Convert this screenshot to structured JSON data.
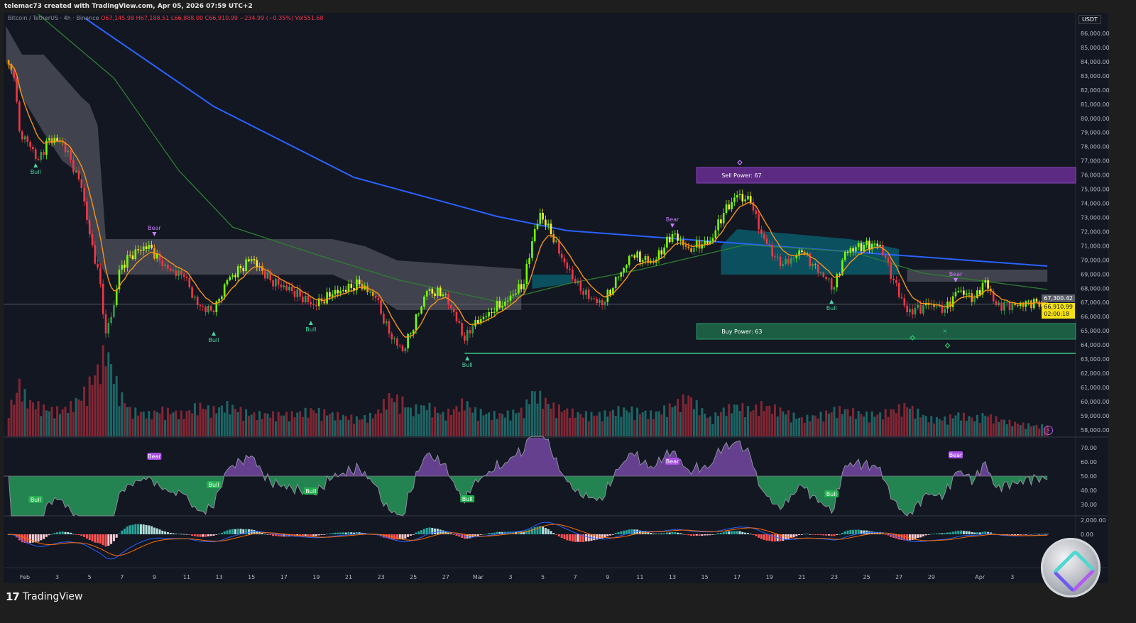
{
  "header": {
    "credit": "telemac73 created with TradingView.com, Apr 05, 2026 07:59 UTC+2"
  },
  "legend": {
    "symbol": "Bitcoin / TetherUS · 4h · Binance",
    "open": "O67,145.98",
    "high": "H67,188.51",
    "low": "L66,888.00",
    "close": "C66,910.99",
    "change": "−234.99 (−0.35%)",
    "volume": "Vol551.68"
  },
  "currency_label": "USDT",
  "price_labels": {
    "prev": "67,300.42",
    "last": "66,910.99",
    "countdown": "02:00:18"
  },
  "footer": {
    "brand": "TradingView"
  },
  "colors": {
    "bg": "#131722",
    "up_strong": "#76ff03",
    "up": "#2e9e4f",
    "down": "#f23645",
    "down_weak": "#ff9800",
    "pullback": "#ffeb3b",
    "ema": "#f7931a",
    "ma_slow": "#2962ff",
    "ma_mid": "#2e7d32",
    "sell_box": "#5c2a82",
    "buy_box": "#1b5e44",
    "rsi_up": "#9c5cd8",
    "rsi_down": "#2ecc71",
    "macd": "#2962ff",
    "signal": "#ff6d00"
  },
  "chart_data": {
    "type": "candlestick",
    "timeframe": "4h",
    "close_path": [
      [
        "2026-01-30 20",
        84100,
        30
      ],
      [
        "2026-01-31 08",
        82850,
        40
      ],
      [
        "2026-01-31 16",
        79100,
        60
      ],
      [
        "2026-02-01 04",
        78350,
        40
      ],
      [
        "2026-02-01 20",
        77100,
        35
      ],
      [
        "2026-02-02 12",
        78600,
        30
      ],
      [
        "2026-02-03 08",
        78350,
        30
      ],
      [
        "2026-02-03 20",
        77100,
        35
      ],
      [
        "2026-02-04 12",
        75100,
        45
      ],
      [
        "2026-02-05 00",
        71850,
        60
      ],
      [
        "2026-02-05 16",
        68350,
        80
      ],
      [
        "2026-02-06 00",
        64850,
        100
      ],
      [
        "2026-02-06 12",
        66850,
        70
      ],
      [
        "2026-02-06 20",
        69350,
        50
      ],
      [
        "2026-02-07 12",
        70350,
        30
      ],
      [
        "2026-02-08 16",
        71100,
        25
      ],
      [
        "2026-02-09 12",
        69600,
        30
      ],
      [
        "2026-02-10 20",
        68850,
        25
      ],
      [
        "2026-02-11 16",
        66850,
        35
      ],
      [
        "2026-02-12 16",
        66350,
        30
      ],
      [
        "2026-02-13 12",
        68600,
        35
      ],
      [
        "2026-02-15 00",
        70100,
        25
      ],
      [
        "2026-02-16 04",
        68600,
        25
      ],
      [
        "2026-02-17 12",
        67850,
        25
      ],
      [
        "2026-02-18 20",
        66850,
        30
      ],
      [
        "2026-02-20 00",
        67600,
        25
      ],
      [
        "2026-02-21 16",
        68350,
        20
      ],
      [
        "2026-02-22 16",
        67350,
        25
      ],
      [
        "2026-02-23 12",
        64850,
        45
      ],
      [
        "2026-02-24 08",
        63600,
        40
      ],
      [
        "2026-02-24 20",
        64850,
        30
      ],
      [
        "2026-02-25 20",
        67850,
        35
      ],
      [
        "2026-02-26 20",
        67600,
        25
      ],
      [
        "2026-02-27 12",
        66350,
        30
      ],
      [
        "2026-02-28 04",
        64350,
        40
      ],
      [
        "2026-02-28 16",
        65350,
        30
      ],
      [
        "2026-03-01 16",
        66350,
        25
      ],
      [
        "2026-03-02 16",
        67100,
        25
      ],
      [
        "2026-03-03 20",
        68350,
        30
      ],
      [
        "2026-03-04 08",
        71350,
        50
      ],
      [
        "2026-03-04 20",
        73350,
        45
      ],
      [
        "2026-03-05 12",
        71850,
        35
      ],
      [
        "2026-03-06 08",
        69850,
        30
      ],
      [
        "2026-03-07 08",
        67850,
        25
      ],
      [
        "2026-03-08 16",
        66850,
        25
      ],
      [
        "2026-03-09 16",
        68850,
        30
      ],
      [
        "2026-03-10 12",
        70350,
        30
      ],
      [
        "2026-03-11 20",
        69850,
        25
      ],
      [
        "2026-03-13 00",
        71850,
        35
      ],
      [
        "2026-03-14 00",
        70850,
        45
      ],
      [
        "2026-03-15 08",
        71350,
        20
      ],
      [
        "2026-03-16 04",
        73350,
        30
      ],
      [
        "2026-03-17 00",
        74600,
        35
      ],
      [
        "2026-03-17 20",
        74100,
        30
      ],
      [
        "2026-03-18 12",
        71850,
        35
      ],
      [
        "2026-03-19 16",
        69600,
        30
      ],
      [
        "2026-03-21 00",
        70600,
        20
      ],
      [
        "2026-03-22 08",
        68850,
        25
      ],
      [
        "2026-03-23 00",
        68100,
        30
      ],
      [
        "2026-03-23 16",
        70600,
        30
      ],
      [
        "2026-03-24 20",
        71100,
        25
      ],
      [
        "2026-03-25 20",
        71100,
        25
      ],
      [
        "2026-03-26 16",
        68600,
        30
      ],
      [
        "2026-03-27 12",
        66350,
        35
      ],
      [
        "2026-03-28 20",
        66850,
        20
      ],
      [
        "2026-03-29 20",
        66600,
        20
      ],
      [
        "2026-03-30 16",
        67850,
        25
      ],
      [
        "2026-03-31 16",
        67350,
        20
      ],
      [
        "2026-04-01 08",
        68600,
        25
      ],
      [
        "2026-04-02 00",
        66850,
        20
      ],
      [
        "2026-04-03 04",
        66850,
        15
      ],
      [
        "2026-04-04 12",
        67100,
        12
      ],
      [
        "2026-04-05 04",
        66911,
        12
      ]
    ],
    "ma_slow": [
      [
        "2026-02-04 16",
        87100
      ],
      [
        "2026-02-12 16",
        80850
      ],
      [
        "2026-02-21 08",
        75850
      ],
      [
        "2026-03-02 04",
        73100
      ],
      [
        "2026-03-06 12",
        72100
      ],
      [
        "2026-03-15 08",
        71350
      ],
      [
        "2026-03-24 04",
        70600
      ],
      [
        "2026-04-05 04",
        69600
      ]
    ],
    "ma_mid": [
      [
        "2026-02-01 20",
        87350
      ],
      [
        "2026-02-06 12",
        82850
      ],
      [
        "2026-02-10 12",
        76350
      ],
      [
        "2026-02-13 20",
        72350
      ],
      [
        "2026-02-19 04",
        70350
      ],
      [
        "2026-02-24 04",
        68600
      ],
      [
        "2026-03-02 04",
        67100
      ],
      [
        "2026-03-06 12",
        68350
      ],
      [
        "2026-03-11 00",
        69350
      ],
      [
        "2026-03-17 12",
        71100
      ],
      [
        "2026-03-24 04",
        70600
      ],
      [
        "2026-03-28 12",
        69100
      ],
      [
        "2026-04-05 04",
        67950
      ]
    ],
    "cloud_gray": [
      [
        "2026-01-30 20",
        86500,
        84000
      ],
      [
        "2026-01-31 20",
        84500,
        81500
      ],
      [
        "2026-02-02 04",
        84500,
        79000
      ],
      [
        "2026-02-03 08",
        83000,
        77000
      ],
      [
        "2026-02-04 12",
        81500,
        76000
      ],
      [
        "2026-02-05 00",
        81000,
        72000
      ],
      [
        "2026-02-05 12",
        79500,
        70000
      ],
      [
        "2026-02-06 00",
        71500,
        69000
      ],
      [
        "2026-02-20 00",
        71500,
        69000
      ],
      [
        "2026-02-22 00",
        71000,
        68000
      ],
      [
        "2026-02-24 00",
        70000,
        66500
      ],
      [
        "2026-03-03 16",
        69400,
        66500
      ]
    ],
    "cloud_teal": [
      [
        [
          "2026-03-04 08",
          69000,
          68000
        ],
        [
          "2026-03-06 20",
          69000,
          68400
        ]
      ],
      [
        [
          "2026-03-16 00",
          71000,
          69000
        ],
        [
          "2026-03-17 00",
          72200,
          69000
        ],
        [
          "2026-03-24 00",
          71500,
          69000
        ],
        [
          "2026-03-27 00",
          70800,
          69000
        ]
      ]
    ],
    "range_box": {
      "from": "2026-03-27 12",
      "to": "2026-04-05 04",
      "top": 69350,
      "bottom": 68500
    },
    "zones": [
      {
        "label": "Sell Power: 67",
        "from": "2026-03-14 12",
        "top": 76550,
        "bottom": 75450,
        "kind": "sell"
      },
      {
        "label": "Buy Power: 63",
        "from": "2026-03-14 12",
        "top": 65550,
        "bottom": 64450,
        "kind": "buy"
      }
    ],
    "support_line": {
      "from": "2026-02-28 04",
      "price": 63450
    },
    "price_markers": [
      {
        "label": "Bull",
        "date": "2026-02-01 16",
        "price": 76700
      },
      {
        "label": "Bear",
        "date": "2026-02-09 00",
        "price": 71850
      },
      {
        "label": "Bull",
        "date": "2026-02-12 16",
        "price": 64850
      },
      {
        "label": "Bull",
        "date": "2026-02-18 16",
        "price": 65600
      },
      {
        "label": "Bull",
        "date": "2026-02-28 08",
        "price": 63100
      },
      {
        "label": "Bear",
        "date": "2026-03-13 00",
        "price": 72450
      },
      {
        "label": "Bull",
        "date": "2026-03-22 20",
        "price": 67100
      },
      {
        "label": "Bear",
        "date": "2026-03-30 12",
        "price": 68600
      }
    ],
    "signal_marks": [
      {
        "shape": "diamond",
        "date": "2026-03-17 04",
        "price": 76900,
        "kind": "sell"
      },
      {
        "shape": "diamond",
        "date": "2026-03-27 20",
        "price": 64550,
        "kind": "buy"
      },
      {
        "shape": "diamond",
        "date": "2026-03-30 00",
        "price": 64000,
        "kind": "buy"
      },
      {
        "shape": "cross",
        "date": "2026-03-29 20",
        "price": 65050,
        "kind": "buy"
      }
    ],
    "rsi_markers": [
      {
        "label": "Bull",
        "date": "2026-02-01 16",
        "value": 33.5
      },
      {
        "label": "Bear",
        "date": "2026-02-09 00",
        "value": 64
      },
      {
        "label": "Bull",
        "date": "2026-02-12 16",
        "value": 44
      },
      {
        "label": "Bull",
        "date": "2026-02-18 16",
        "value": 39.5
      },
      {
        "label": "Bull",
        "date": "2026-02-28 08",
        "value": 34
      },
      {
        "label": "Bear",
        "date": "2026-03-13 00",
        "value": 60.5
      },
      {
        "label": "Bull",
        "date": "2026-03-22 20",
        "value": 37.5
      },
      {
        "label": "Bear",
        "date": "2026-03-30 12",
        "value": 65
      }
    ],
    "price_axis": [
      "86,000.00",
      "85,000.00",
      "84,000.00",
      "83,000.00",
      "82,000.00",
      "81,000.00",
      "80,000.00",
      "79,000.00",
      "78,000.00",
      "77,000.00",
      "76,000.00",
      "75,000.00",
      "74,000.00",
      "73,000.00",
      "72,000.00",
      "71,000.00",
      "70,000.00",
      "69,000.00",
      "68,000.00",
      "67,000.00",
      "66,000.00",
      "65,000.00",
      "64,000.00",
      "63,000.00",
      "62,000.00",
      "61,000.00",
      "60,000.00",
      "59,000.00",
      "58,000.00"
    ],
    "rsi_axis": [
      "70.00",
      "60.00",
      "50.00",
      "40.00",
      "30.00"
    ],
    "macd_axis": [
      "2,000.00",
      "0.00"
    ],
    "time_axis": [
      [
        "Feb",
        "2026-02-01"
      ],
      [
        "3",
        "2026-02-03"
      ],
      [
        "5",
        "2026-02-05"
      ],
      [
        "7",
        "2026-02-07"
      ],
      [
        "9",
        "2026-02-09"
      ],
      [
        "11",
        "2026-02-11"
      ],
      [
        "13",
        "2026-02-13"
      ],
      [
        "15",
        "2026-02-15"
      ],
      [
        "17",
        "2026-02-17"
      ],
      [
        "19",
        "2026-02-19"
      ],
      [
        "21",
        "2026-02-21"
      ],
      [
        "23",
        "2026-02-23"
      ],
      [
        "25",
        "2026-02-25"
      ],
      [
        "27",
        "2026-02-27"
      ],
      [
        "Mar",
        "2026-03-01"
      ],
      [
        "3",
        "2026-03-03"
      ],
      [
        "5",
        "2026-03-05"
      ],
      [
        "7",
        "2026-03-07"
      ],
      [
        "9",
        "2026-03-09"
      ],
      [
        "11",
        "2026-03-11"
      ],
      [
        "13",
        "2026-03-13"
      ],
      [
        "15",
        "2026-03-15"
      ],
      [
        "17",
        "2026-03-17"
      ],
      [
        "19",
        "2026-03-19"
      ],
      [
        "21",
        "2026-03-21"
      ],
      [
        "23",
        "2026-03-23"
      ],
      [
        "25",
        "2026-03-25"
      ],
      [
        "27",
        "2026-03-27"
      ],
      [
        "29",
        "2026-03-29"
      ],
      [
        "Apr",
        "2026-04-01"
      ],
      [
        "3",
        "2026-04-03"
      ]
    ],
    "last_price": 66910.99,
    "prev_price": 67300.42
  }
}
